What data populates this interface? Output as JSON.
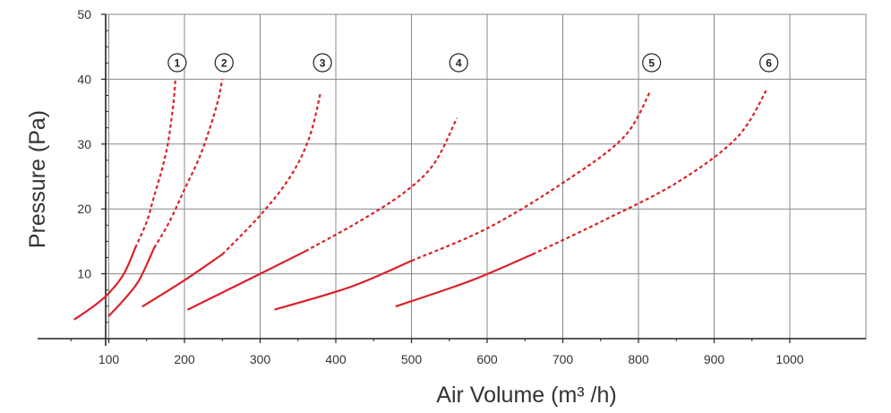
{
  "chart_data": {
    "type": "line",
    "xlabel": "Air Volume  (m³ /h)",
    "ylabel": "Pressure  (Pa)",
    "xlim": [
      0,
      1000
    ],
    "ylim": [
      0,
      50
    ],
    "x_ticks": [
      "100",
      "200",
      "300",
      "400",
      "500",
      "600",
      "700",
      "800",
      "900",
      "1000"
    ],
    "y_ticks": [
      "10",
      "20",
      "30",
      "40",
      "50"
    ],
    "grid": true,
    "line_color": "#d8232a",
    "series": [
      {
        "name": "1",
        "solid": [
          [
            55,
            3
          ],
          [
            80,
            5
          ],
          [
            100,
            7
          ],
          [
            120,
            10
          ],
          [
            135,
            14
          ]
        ],
        "dashed": [
          [
            135,
            14
          ],
          [
            150,
            18
          ],
          [
            160,
            22
          ],
          [
            170,
            26
          ],
          [
            178,
            30
          ],
          [
            183,
            34
          ],
          [
            186,
            37
          ],
          [
            188,
            40
          ]
        ]
      },
      {
        "name": "2",
        "solid": [
          [
            100,
            3.5
          ],
          [
            120,
            6
          ],
          [
            140,
            9
          ],
          [
            160,
            14
          ]
        ],
        "dashed": [
          [
            160,
            14
          ],
          [
            180,
            18
          ],
          [
            200,
            23
          ],
          [
            220,
            28
          ],
          [
            235,
            33
          ],
          [
            245,
            37
          ],
          [
            250,
            40
          ]
        ]
      },
      {
        "name": "3",
        "solid": [
          [
            145,
            5
          ],
          [
            200,
            9
          ],
          [
            250,
            13
          ]
        ],
        "dashed": [
          [
            250,
            13
          ],
          [
            300,
            19
          ],
          [
            340,
            25
          ],
          [
            365,
            31
          ],
          [
            380,
            38
          ]
        ]
      },
      {
        "name": "4",
        "solid": [
          [
            205,
            4.5
          ],
          [
            300,
            10
          ],
          [
            360,
            13.5
          ]
        ],
        "dashed": [
          [
            360,
            13.5
          ],
          [
            430,
            18
          ],
          [
            490,
            22.5
          ],
          [
            530,
            27
          ],
          [
            560,
            34
          ]
        ]
      },
      {
        "name": "5",
        "solid": [
          [
            320,
            4.5
          ],
          [
            420,
            8
          ],
          [
            500,
            12
          ]
        ],
        "dashed": [
          [
            500,
            12
          ],
          [
            600,
            17
          ],
          [
            700,
            24
          ],
          [
            780,
            31
          ],
          [
            815,
            38
          ]
        ]
      },
      {
        "name": "6",
        "solid": [
          [
            480,
            5
          ],
          [
            580,
            9
          ],
          [
            660,
            13
          ]
        ],
        "dashed": [
          [
            660,
            13
          ],
          [
            750,
            18
          ],
          [
            850,
            24
          ],
          [
            930,
            31
          ],
          [
            970,
            38.5
          ]
        ]
      }
    ]
  }
}
